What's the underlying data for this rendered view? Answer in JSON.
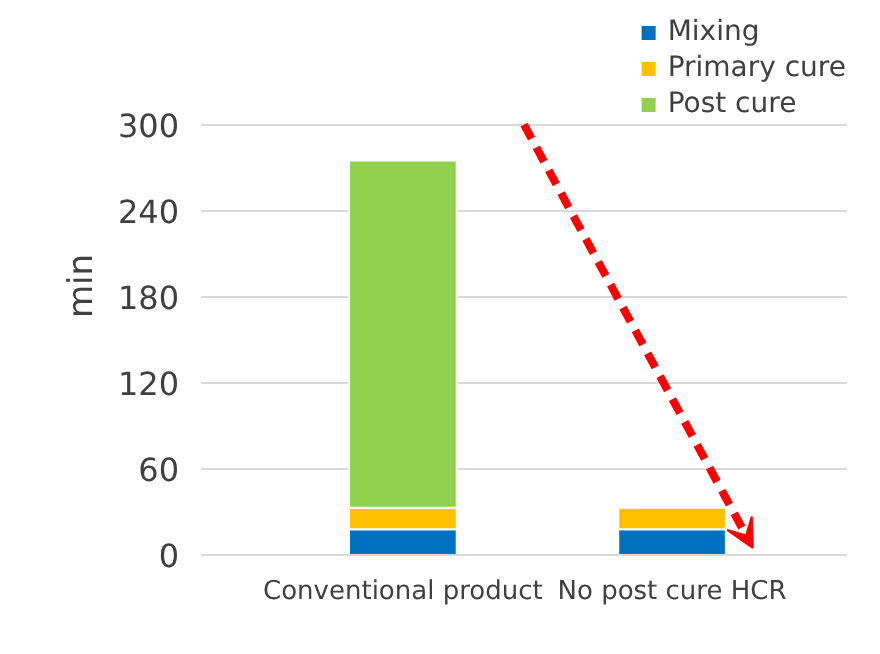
{
  "chart_data": {
    "type": "bar",
    "stacked": true,
    "categories": [
      "Conventional product",
      "No post cure HCR"
    ],
    "ylabel": "min",
    "ylim": [
      0,
      300
    ],
    "yticks": [
      0,
      60,
      120,
      180,
      240,
      300
    ],
    "grid": "y",
    "legend": "top right",
    "series": [
      {
        "name": "Mixing",
        "color": "#0070c0",
        "values": [
          18,
          18
        ]
      },
      {
        "name": "Primary cure",
        "color": "#ffc000",
        "values": [
          15,
          15
        ]
      },
      {
        "name": "Post cure",
        "color": "#92d050",
        "values": [
          242,
          null
        ]
      }
    ]
  }
}
